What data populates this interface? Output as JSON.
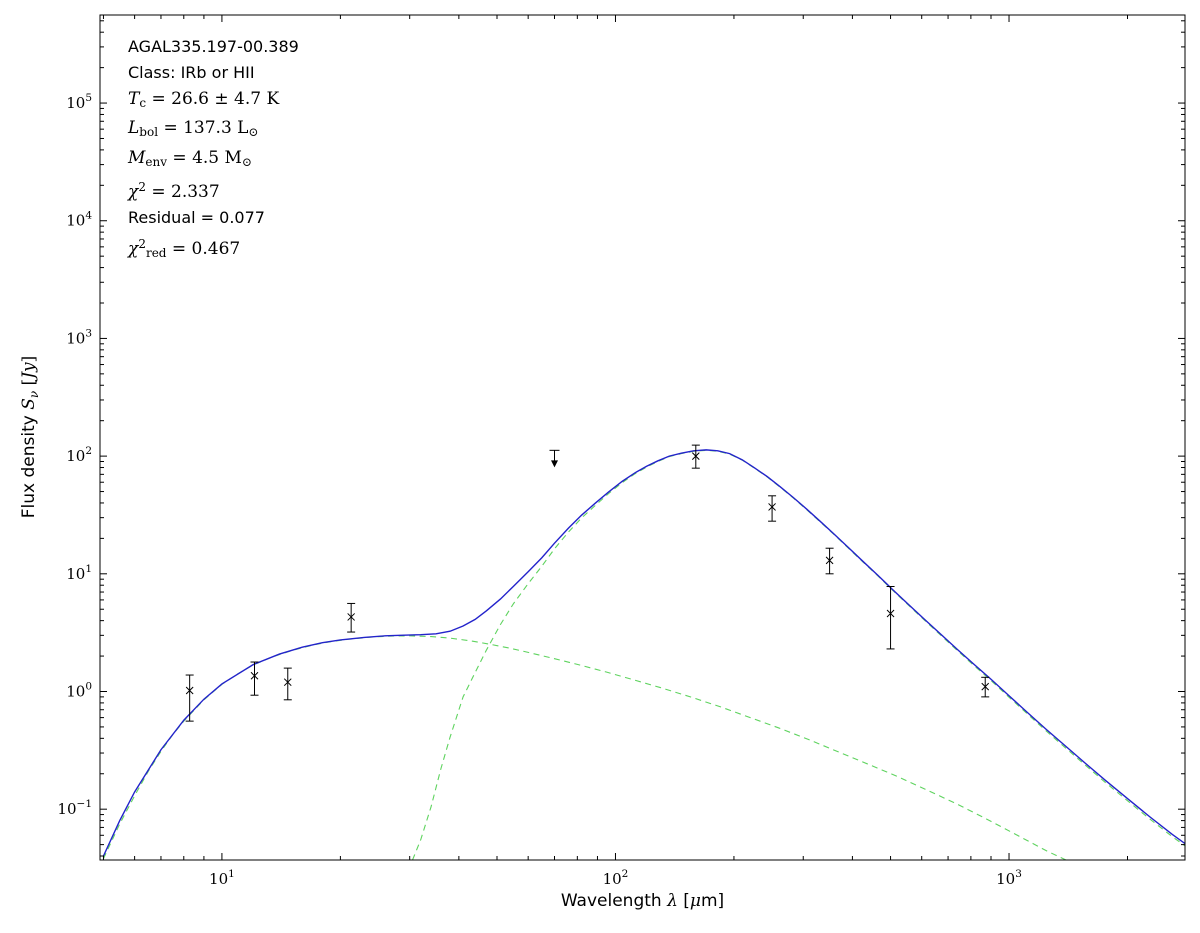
{
  "source": {
    "name": "AGAL335.197-00.389",
    "class": "IRb or HII",
    "T_c": "26.6 ± 4.7 K",
    "L_bol": "137.3 L⊙",
    "M_env": "4.5 M⊙",
    "chi2": "2.337",
    "residual": "0.077",
    "chi2_red": "0.467"
  },
  "chart_data": {
    "type": "line",
    "x_scale": "log",
    "y_scale": "log",
    "xlim": [
      4.9,
      2800
    ],
    "ylim": [
      0.037,
      560000
    ],
    "x_major_ticks": [
      10,
      100,
      1000
    ],
    "y_major_ticks": [
      0.1,
      1,
      10,
      100,
      1000,
      10000,
      100000
    ],
    "grid": false,
    "legend": null,
    "colors": {
      "model_total": "#2323cb",
      "model_components": "#5fd35f",
      "data": "#000000",
      "axes": "#000000"
    },
    "xlabel_segments": [
      {
        "t": "Wavelength ",
        "s": "sans"
      },
      {
        "t": "λ",
        "s": "it"
      },
      {
        "t": " [",
        "s": "sans"
      },
      {
        "t": "μ",
        "s": "it"
      },
      {
        "t": "m]",
        "s": "sans"
      }
    ],
    "ylabel_segments": [
      {
        "t": "Flux density ",
        "s": "sans"
      },
      {
        "t": "S",
        "s": "it"
      },
      {
        "t": "ν",
        "s": "subit"
      },
      {
        "t": " [",
        "s": "rm"
      },
      {
        "t": "Jy",
        "s": "it"
      },
      {
        "t": "]",
        "s": "rm"
      }
    ],
    "annotation_lines": [
      [
        {
          "t": "AGAL335.197-00.389",
          "s": "sans"
        }
      ],
      [
        {
          "t": "Class: IRb or HII",
          "s": "sans"
        }
      ],
      [
        {
          "t": "T",
          "s": "it"
        },
        {
          "t": "c",
          "s": "sub"
        },
        {
          "t": " = 26.6 ± 4.7 K",
          "s": "rm"
        }
      ],
      [
        {
          "t": "L",
          "s": "it"
        },
        {
          "t": "bol",
          "s": "sub"
        },
        {
          "t": " = 137.3 L",
          "s": "rm"
        },
        {
          "t": "⊙",
          "s": "sub"
        }
      ],
      [
        {
          "t": "M",
          "s": "it"
        },
        {
          "t": "env",
          "s": "sub"
        },
        {
          "t": " = 4.5 M",
          "s": "rm"
        },
        {
          "t": "⊙",
          "s": "sub"
        }
      ],
      [
        {
          "t": "χ",
          "s": "it"
        },
        {
          "t": "2",
          "s": "sup"
        },
        {
          "t": " = 2.337",
          "s": "rm"
        }
      ],
      [
        {
          "t": "Residual = 0.077",
          "s": "sans"
        }
      ],
      [
        {
          "t": "χ",
          "s": "it"
        },
        {
          "t": "2",
          "s": "sup"
        },
        {
          "t": "red",
          "s": "sub"
        },
        {
          "t": " = 0.467",
          "s": "rm"
        }
      ]
    ],
    "series": [
      {
        "name": "cold-component",
        "style": "dashed",
        "color": "#5fd35f",
        "width": 1.1,
        "points": [
          [
            30.5,
            0.037
          ],
          [
            32,
            0.055
          ],
          [
            34,
            0.105
          ],
          [
            36,
            0.22
          ],
          [
            38,
            0.41
          ],
          [
            41,
            0.9
          ],
          [
            44,
            1.45
          ],
          [
            47,
            2.25
          ],
          [
            51,
            3.7
          ],
          [
            55,
            5.55
          ],
          [
            60,
            8.25
          ],
          [
            65,
            11.6
          ],
          [
            70,
            16.3
          ],
          [
            76,
            22.7
          ],
          [
            82,
            29.8
          ],
          [
            89,
            38.3
          ],
          [
            96,
            48.0
          ],
          [
            104,
            59.5
          ],
          [
            112,
            70.7
          ],
          [
            120,
            80.8
          ],
          [
            128,
            89.9
          ],
          [
            137,
            99.0
          ],
          [
            147,
            105
          ],
          [
            158,
            110
          ],
          [
            170,
            112
          ],
          [
            182,
            110
          ],
          [
            195,
            104
          ],
          [
            210,
            92.4
          ],
          [
            225,
            79.4
          ],
          [
            243,
            66.5
          ],
          [
            262,
            54.5
          ],
          [
            283,
            44.1
          ],
          [
            306,
            35.1
          ],
          [
            331,
            27.7
          ],
          [
            358,
            21.8
          ],
          [
            390,
            16.6
          ],
          [
            425,
            12.65
          ],
          [
            463,
            9.68
          ],
          [
            505,
            7.3
          ],
          [
            555,
            5.42
          ],
          [
            610,
            4.03
          ],
          [
            672,
            2.99
          ],
          [
            740,
            2.22
          ],
          [
            815,
            1.66
          ],
          [
            900,
            1.24
          ],
          [
            1000,
            0.895
          ],
          [
            1110,
            0.651
          ],
          [
            1240,
            0.465
          ],
          [
            1390,
            0.333
          ],
          [
            1560,
            0.238
          ],
          [
            1760,
            0.168
          ],
          [
            2000,
            0.118
          ],
          [
            2280,
            0.0824
          ],
          [
            2600,
            0.0584
          ],
          [
            2800,
            0.0489
          ]
        ]
      },
      {
        "name": "warm-component",
        "style": "dashed",
        "color": "#5fd35f",
        "width": 1.1,
        "points": [
          [
            5.0,
            0.038
          ],
          [
            5.5,
            0.075
          ],
          [
            6.0,
            0.13
          ],
          [
            6.5,
            0.21
          ],
          [
            7.0,
            0.31
          ],
          [
            7.5,
            0.43
          ],
          [
            8.0,
            0.56
          ],
          [
            9.0,
            0.85
          ],
          [
            10,
            1.15
          ],
          [
            11,
            1.42
          ],
          [
            12,
            1.68
          ],
          [
            13.5,
            1.98
          ],
          [
            15,
            2.22
          ],
          [
            17,
            2.48
          ],
          [
            19,
            2.66
          ],
          [
            21,
            2.78
          ],
          [
            24,
            2.9
          ],
          [
            27,
            2.96
          ],
          [
            30,
            2.97
          ],
          [
            34,
            2.93
          ],
          [
            38,
            2.84
          ],
          [
            43,
            2.69
          ],
          [
            48,
            2.52
          ],
          [
            54,
            2.33
          ],
          [
            60,
            2.15
          ],
          [
            70,
            1.9
          ],
          [
            80,
            1.7
          ],
          [
            95,
            1.46
          ],
          [
            110,
            1.27
          ],
          [
            130,
            1.08
          ],
          [
            155,
            0.9
          ],
          [
            185,
            0.74
          ],
          [
            220,
            0.6
          ],
          [
            260,
            0.49
          ],
          [
            310,
            0.39
          ],
          [
            370,
            0.305
          ],
          [
            440,
            0.24
          ],
          [
            520,
            0.19
          ],
          [
            620,
            0.145
          ],
          [
            740,
            0.11
          ],
          [
            880,
            0.082
          ],
          [
            1050,
            0.06
          ],
          [
            1250,
            0.044
          ],
          [
            1420,
            0.036
          ]
        ]
      },
      {
        "name": "total-model",
        "style": "solid",
        "color": "#2323cb",
        "width": 1.4,
        "points": [
          [
            5.0,
            0.04
          ],
          [
            5.5,
            0.08
          ],
          [
            6.0,
            0.14
          ],
          [
            7.0,
            0.32
          ],
          [
            8.0,
            0.57
          ],
          [
            9.0,
            0.86
          ],
          [
            10,
            1.16
          ],
          [
            12,
            1.69
          ],
          [
            14,
            2.08
          ],
          [
            16,
            2.38
          ],
          [
            18,
            2.6
          ],
          [
            20,
            2.74
          ],
          [
            23,
            2.88
          ],
          [
            26,
            2.97
          ],
          [
            29,
            3.01
          ],
          [
            32,
            3.04
          ],
          [
            35,
            3.09
          ],
          [
            38,
            3.25
          ],
          [
            41,
            3.6
          ],
          [
            44,
            4.1
          ],
          [
            47,
            4.85
          ],
          [
            51,
            6.1
          ],
          [
            55,
            7.8
          ],
          [
            60,
            10.4
          ],
          [
            65,
            13.7
          ],
          [
            70,
            18.2
          ],
          [
            76,
            24.5
          ],
          [
            82,
            31.5
          ],
          [
            89,
            40.0
          ],
          [
            96,
            49.5
          ],
          [
            104,
            61.0
          ],
          [
            112,
            72.0
          ],
          [
            120,
            82.0
          ],
          [
            128,
            91.0
          ],
          [
            137,
            100
          ],
          [
            147,
            106
          ],
          [
            158,
            111
          ],
          [
            170,
            113
          ],
          [
            182,
            111
          ],
          [
            195,
            105
          ],
          [
            210,
            93.0
          ],
          [
            225,
            80.0
          ],
          [
            243,
            67.0
          ],
          [
            262,
            55.0
          ],
          [
            283,
            44.5
          ],
          [
            306,
            35.5
          ],
          [
            331,
            28.0
          ],
          [
            358,
            22.0
          ],
          [
            390,
            16.8
          ],
          [
            425,
            12.8
          ],
          [
            463,
            9.8
          ],
          [
            505,
            7.4
          ],
          [
            555,
            5.5
          ],
          [
            610,
            4.1
          ],
          [
            672,
            3.05
          ],
          [
            740,
            2.27
          ],
          [
            815,
            1.7
          ],
          [
            900,
            1.27
          ],
          [
            1000,
            0.92
          ],
          [
            1110,
            0.67
          ],
          [
            1240,
            0.48
          ],
          [
            1390,
            0.345
          ],
          [
            1560,
            0.247
          ],
          [
            1760,
            0.175
          ],
          [
            2000,
            0.123
          ],
          [
            2280,
            0.086
          ],
          [
            2600,
            0.061
          ],
          [
            2800,
            0.051
          ]
        ]
      }
    ],
    "data_points": [
      {
        "x": 8.28,
        "y": 1.02,
        "y_lo": 0.56,
        "y_hi": 1.38
      },
      {
        "x": 12.1,
        "y": 1.36,
        "y_lo": 0.93,
        "y_hi": 1.78
      },
      {
        "x": 14.7,
        "y": 1.2,
        "y_lo": 0.85,
        "y_hi": 1.58
      },
      {
        "x": 21.3,
        "y": 4.3,
        "y_lo": 3.2,
        "y_hi": 5.6
      },
      {
        "x": 70,
        "y": 112,
        "upper_limit": true
      },
      {
        "x": 160,
        "y": 100,
        "y_lo": 79,
        "y_hi": 124
      },
      {
        "x": 250,
        "y": 37,
        "y_lo": 28,
        "y_hi": 46
      },
      {
        "x": 350,
        "y": 13,
        "y_lo": 10,
        "y_hi": 16.5
      },
      {
        "x": 500,
        "y": 4.6,
        "y_lo": 2.3,
        "y_hi": 7.8
      },
      {
        "x": 870,
        "y": 1.1,
        "y_lo": 0.9,
        "y_hi": 1.32
      }
    ]
  }
}
